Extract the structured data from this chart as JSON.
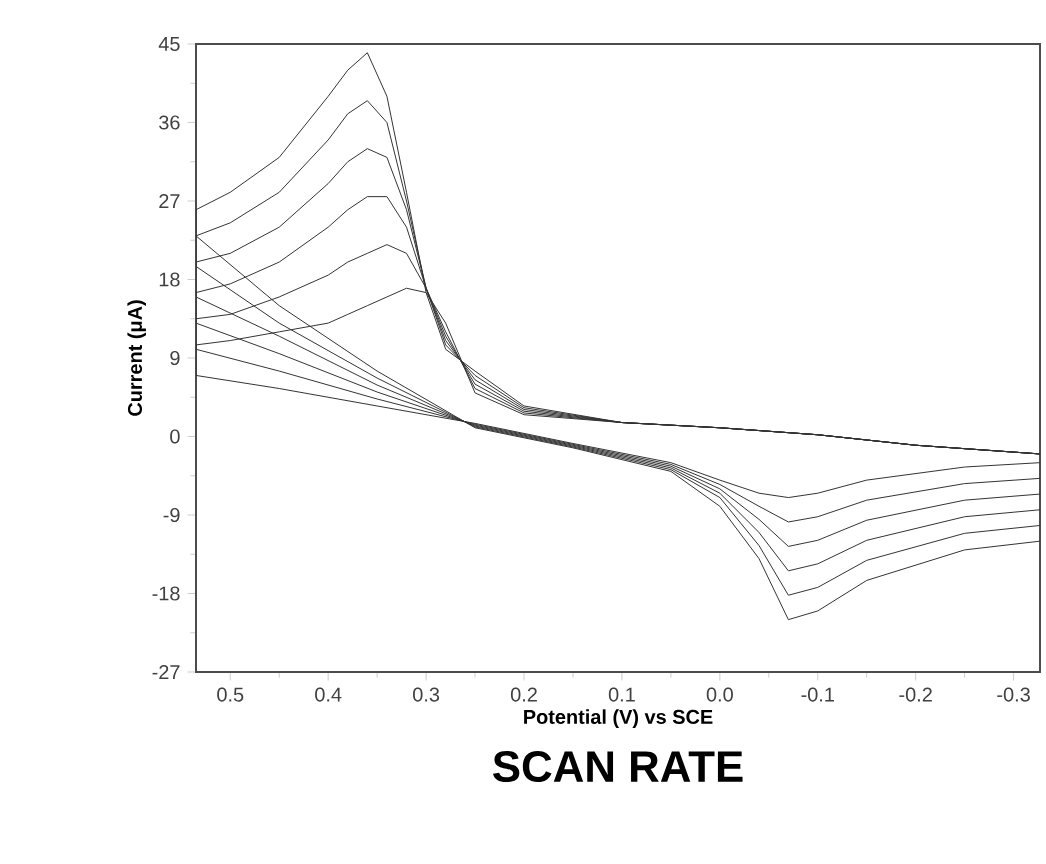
{
  "chart_data": {
    "type": "line",
    "xlabel": "Potential (V) vs SCE",
    "ylabel": "Current (μA)",
    "annotations": [
      "SCAN RATE"
    ],
    "xlim": [
      0.535,
      -0.327
    ],
    "ylim": [
      -27,
      45
    ],
    "xticks": [
      0.5,
      0.4,
      0.3,
      0.2,
      0.1,
      {
        "value": 0,
        "label": "0.0"
      },
      -0.1,
      -0.2,
      -0.3
    ],
    "yticks": [
      -27,
      -18,
      -9,
      0,
      9,
      18,
      27,
      36,
      45
    ],
    "x": [
      -0.327,
      -0.2,
      -0.1,
      0.0,
      0.1,
      0.2,
      0.25,
      0.28,
      0.3,
      0.32,
      0.34,
      0.36,
      0.38,
      0.4,
      0.45,
      0.5,
      0.535,
      0.535,
      0.45,
      0.35,
      0.25,
      0.15,
      0.05,
      0.0,
      -0.04,
      -0.07,
      -0.1,
      -0.15,
      -0.25,
      -0.327
    ],
    "series": [
      {
        "color": "#333333",
        "values": [
          -2,
          -1,
          0.2,
          1,
          1.6,
          2.5,
          5,
          13,
          16.5,
          17,
          16,
          15,
          14,
          13,
          12,
          11,
          10.5,
          7,
          5.5,
          3.5,
          1.5,
          -0.8,
          -3,
          -5,
          -6.5,
          -7,
          -6.5,
          -5,
          -3.5,
          -3
        ]
      },
      {
        "color": "#333333",
        "values": [
          -2,
          -1,
          0.2,
          1,
          1.6,
          2.7,
          5.5,
          12,
          17,
          21,
          22,
          21,
          20,
          18.5,
          16,
          14,
          13.5,
          10,
          7.5,
          4.3,
          1.4,
          -0.9,
          -3.2,
          -5.5,
          -8,
          -9.8,
          -9.2,
          -7.3,
          -5.4,
          -4.8
        ]
      },
      {
        "color": "#333333",
        "values": [
          -2,
          -1,
          0.2,
          1,
          1.6,
          2.9,
          6,
          11.5,
          17,
          24,
          27.5,
          27.5,
          26,
          24,
          20,
          17.5,
          16.5,
          13,
          9.5,
          5.1,
          1.3,
          -1,
          -3.4,
          -6,
          -9.5,
          -12.6,
          -11.9,
          -9.6,
          -7.3,
          -6.6
        ]
      },
      {
        "color": "#333333",
        "values": [
          -2,
          -1,
          0.2,
          1,
          1.6,
          3.1,
          6.5,
          11,
          17,
          26,
          32,
          33,
          31.5,
          29,
          24,
          21,
          20,
          16,
          11.5,
          5.9,
          1.2,
          -1.1,
          -3.6,
          -6.5,
          -11,
          -15.4,
          -14.6,
          -11.9,
          -9.2,
          -8.4
        ]
      },
      {
        "color": "#333333",
        "values": [
          -2,
          -1,
          0.2,
          1,
          1.6,
          3.3,
          7,
          10.5,
          17,
          27,
          36,
          38.5,
          37,
          34,
          28,
          24.5,
          23,
          19.5,
          13,
          6.7,
          1.1,
          -1.2,
          -3.8,
          -7,
          -12.5,
          -18.2,
          -17.3,
          -14.2,
          -11.1,
          -10.2
        ]
      },
      {
        "color": "#333333",
        "values": [
          -2,
          -1,
          0.2,
          1,
          1.6,
          3.5,
          7.5,
          10,
          16.5,
          28,
          39,
          44,
          42,
          39,
          32,
          28,
          26,
          23,
          15,
          7.5,
          1,
          -1.3,
          -4,
          -8,
          -14,
          -21,
          -20,
          -16.5,
          -13,
          -12
        ]
      }
    ]
  }
}
